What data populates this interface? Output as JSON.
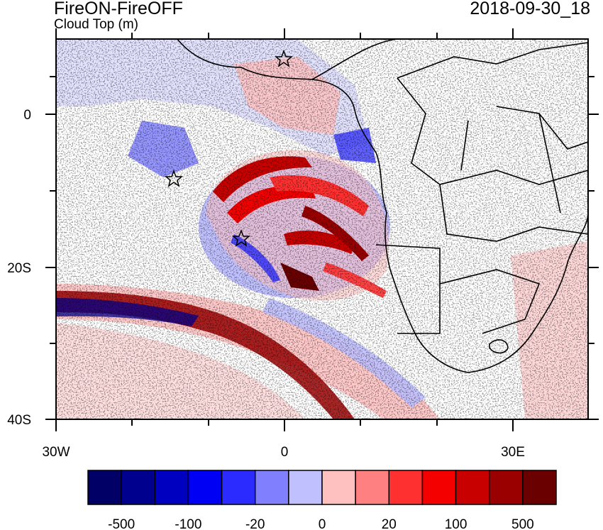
{
  "title": "FireON-FireOFF",
  "subtitle": "Cloud Top (m)",
  "date": "2018-09-30_18",
  "axes": {
    "x_ticks": [
      "30W",
      "0",
      "30E"
    ],
    "y_ticks": [
      "0",
      "20S",
      "40S"
    ]
  },
  "colorbar": {
    "labels": [
      "-500",
      "-100",
      "-20",
      "0",
      "20",
      "100",
      "500"
    ],
    "colors": [
      "#000066",
      "#00008f",
      "#0000c0",
      "#0000f5",
      "#2b2bff",
      "#8080ff",
      "#c0c0ff",
      "#ffc0c0",
      "#ff8080",
      "#ff3030",
      "#f50000",
      "#c80000",
      "#9a0000",
      "#6a0000"
    ]
  },
  "markers": [
    {
      "name": "star-marker-north"
    },
    {
      "name": "star-marker-west"
    },
    {
      "name": "star-marker-center"
    }
  ]
}
